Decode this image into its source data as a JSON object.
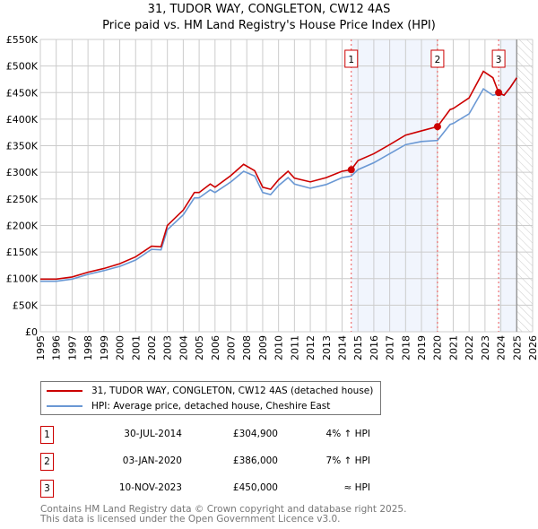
{
  "chart_data": {
    "type": "line",
    "title": "31, TUDOR WAY, CONGLETON, CW12 4AS",
    "subtitle": "Price paid vs. HM Land Registry's House Price Index (HPI)",
    "xlim": [
      1995,
      2026
    ],
    "ylim": [
      0,
      550000
    ],
    "yticks": [
      0,
      50000,
      100000,
      150000,
      200000,
      250000,
      300000,
      350000,
      400000,
      450000,
      500000,
      550000
    ],
    "ytick_labels": [
      "£0",
      "£50K",
      "£100K",
      "£150K",
      "£200K",
      "£250K",
      "£300K",
      "£350K",
      "£400K",
      "£450K",
      "£500K",
      "£550K"
    ],
    "xticks": [
      "1995",
      "1996",
      "1997",
      "1998",
      "1999",
      "2000",
      "2001",
      "2002",
      "2003",
      "2004",
      "2005",
      "2006",
      "2007",
      "2008",
      "2009",
      "2010",
      "2011",
      "2012",
      "2013",
      "2014",
      "2015",
      "2016",
      "2017",
      "2018",
      "2019",
      "2020",
      "2021",
      "2022",
      "2023",
      "2024",
      "2025",
      "2026"
    ],
    "grid": true,
    "series": [
      {
        "name": "31, TUDOR WAY, CONGLETON, CW12 4AS (detached house)",
        "color": "#cc0000",
        "x": [
          1995,
          1996,
          1997,
          1998,
          1999,
          2000,
          2001,
          2002,
          2002.6,
          2003,
          2004,
          2004.7,
          2005,
          2005.7,
          2006,
          2007,
          2007.8,
          2008.5,
          2009,
          2009.5,
          2010,
          2010.6,
          2011,
          2012,
          2013,
          2014,
          2014.58,
          2015,
          2016,
          2017,
          2018,
          2019,
          2020.01,
          2020.8,
          2021,
          2022,
          2022.9,
          2023.5,
          2023.86,
          2024.2,
          2024.6,
          2025
        ],
        "y": [
          99000,
          99000,
          103000,
          112000,
          119000,
          128000,
          141000,
          161000,
          160000,
          200000,
          229000,
          262000,
          262000,
          278000,
          272000,
          294000,
          315000,
          303000,
          272000,
          268000,
          286000,
          302000,
          289000,
          282000,
          290000,
          302000,
          304900,
          322000,
          335000,
          352000,
          370000,
          378000,
          386000,
          418000,
          420000,
          440000,
          490000,
          478000,
          450000,
          445000,
          460000,
          478000
        ]
      },
      {
        "name": "HPI: Average price, detached house, Cheshire East",
        "color": "#6a98d4",
        "x": [
          1995,
          1996,
          1997,
          1998,
          1999,
          2000,
          2001,
          2002,
          2002.6,
          2003,
          2004,
          2004.7,
          2005,
          2005.7,
          2006,
          2007,
          2007.8,
          2008.5,
          2009,
          2009.5,
          2010,
          2010.6,
          2011,
          2012,
          2013,
          2014,
          2014.58,
          2015,
          2016,
          2017,
          2018,
          2019,
          2020.01,
          2020.8,
          2021,
          2022,
          2022.9,
          2023.5,
          2023.86,
          2024.2,
          2024.6,
          2025
        ],
        "y": [
          95000,
          95000,
          99000,
          108000,
          115000,
          123000,
          135000,
          155000,
          154000,
          192000,
          220000,
          252000,
          252000,
          267000,
          262000,
          282000,
          302000,
          293000,
          262000,
          258000,
          275000,
          290000,
          278000,
          270000,
          277000,
          290000,
          293000,
          305000,
          318000,
          335000,
          352000,
          358000,
          360000,
          390000,
          392000,
          410000,
          457000,
          445000,
          448000,
          445000,
          460000,
          478000
        ]
      }
    ],
    "sales": [
      {
        "label": "1",
        "x": 2014.58,
        "price": 304900,
        "date": "30-JUL-2014",
        "price_text": "£304,900",
        "hpi": "4% ↑ HPI"
      },
      {
        "label": "2",
        "x": 2020.01,
        "price": 386000,
        "date": "03-JAN-2020",
        "price_text": "£386,000",
        "hpi": "7% ↑ HPI"
      },
      {
        "label": "3",
        "x": 2023.86,
        "price": 450000,
        "date": "10-NOV-2023",
        "price_text": "£450,000",
        "hpi": "≈ HPI"
      }
    ],
    "data_end": 2025
  },
  "footer": {
    "line1": "Contains HM Land Registry data © Crown copyright and database right 2025.",
    "line2": "This data is licensed under the Open Government Licence v3.0."
  }
}
